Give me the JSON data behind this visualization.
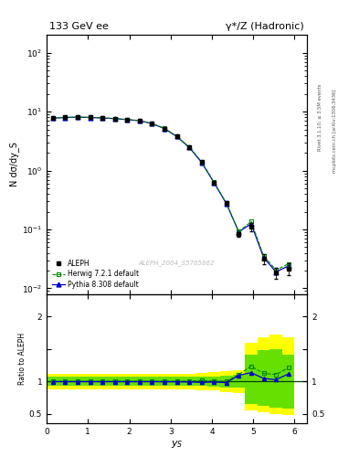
{
  "title_left": "133 GeV ee",
  "title_right": "γ*/Z (Hadronic)",
  "ylabel_main": "N dσ/dy_S",
  "ylabel_ratio": "Ratio to ALEPH",
  "xlabel": "y_S",
  "right_label": "Rivet 3.1.10, ≥ 3.5M events",
  "right_label2": "mcplots.cern.ch [arXiv:1306.3436]",
  "watermark": "ALEPH_2004_S5765862",
  "aleph_x": [
    0.15,
    0.45,
    0.75,
    1.05,
    1.35,
    1.65,
    1.95,
    2.25,
    2.55,
    2.85,
    3.15,
    3.45,
    3.75,
    4.05,
    4.35,
    4.65,
    4.95,
    5.25,
    5.55,
    5.85
  ],
  "aleph_y": [
    7.8,
    8.0,
    8.1,
    8.0,
    7.85,
    7.65,
    7.35,
    7.05,
    6.3,
    5.2,
    3.8,
    2.5,
    1.4,
    0.63,
    0.28,
    0.083,
    0.11,
    0.032,
    0.0185,
    0.0215
  ],
  "aleph_yerr": [
    0.25,
    0.25,
    0.25,
    0.25,
    0.25,
    0.25,
    0.25,
    0.25,
    0.22,
    0.18,
    0.13,
    0.09,
    0.06,
    0.035,
    0.018,
    0.008,
    0.018,
    0.006,
    0.004,
    0.005
  ],
  "herwig_x": [
    0.15,
    0.45,
    0.75,
    1.05,
    1.35,
    1.65,
    1.95,
    2.25,
    2.55,
    2.85,
    3.15,
    3.45,
    3.75,
    4.05,
    4.35,
    4.65,
    4.95,
    5.25,
    5.55,
    5.85
  ],
  "herwig_y": [
    7.82,
    8.02,
    8.12,
    8.02,
    7.87,
    7.67,
    7.37,
    7.07,
    6.32,
    5.22,
    3.82,
    2.52,
    1.42,
    0.635,
    0.28,
    0.092,
    0.136,
    0.036,
    0.0205,
    0.026
  ],
  "pythia_x": [
    0.15,
    0.45,
    0.75,
    1.05,
    1.35,
    1.65,
    1.95,
    2.25,
    2.55,
    2.85,
    3.15,
    3.45,
    3.75,
    4.05,
    4.35,
    4.65,
    4.95,
    5.25,
    5.55,
    5.85
  ],
  "pythia_y": [
    7.78,
    7.98,
    8.08,
    7.98,
    7.83,
    7.63,
    7.33,
    7.03,
    6.28,
    5.18,
    3.78,
    2.48,
    1.38,
    0.625,
    0.275,
    0.091,
    0.125,
    0.0335,
    0.019,
    0.024
  ],
  "herwig_ratio": [
    1.003,
    1.003,
    1.002,
    1.002,
    1.003,
    1.003,
    1.003,
    1.003,
    1.003,
    1.004,
    1.005,
    1.008,
    1.014,
    1.008,
    1.0,
    1.108,
    1.236,
    1.125,
    1.108,
    1.21
  ],
  "pythia_ratio": [
    0.997,
    0.997,
    0.997,
    0.997,
    0.997,
    0.997,
    0.997,
    0.997,
    0.997,
    0.996,
    0.995,
    0.992,
    0.986,
    0.992,
    0.982,
    1.096,
    1.136,
    1.047,
    1.027,
    1.116
  ],
  "yellow_band_x": [
    0.0,
    0.3,
    0.6,
    0.9,
    1.2,
    1.5,
    1.8,
    2.1,
    2.4,
    2.7,
    3.0,
    3.3,
    3.6,
    3.9,
    4.2,
    4.5,
    4.8,
    5.1,
    5.4,
    5.7,
    6.0
  ],
  "yellow_band_lo": [
    0.88,
    0.88,
    0.88,
    0.88,
    0.88,
    0.88,
    0.88,
    0.88,
    0.88,
    0.88,
    0.88,
    0.88,
    0.87,
    0.86,
    0.84,
    0.82,
    0.55,
    0.52,
    0.5,
    0.48,
    0.4
  ],
  "yellow_band_hi": [
    1.12,
    1.12,
    1.12,
    1.12,
    1.12,
    1.12,
    1.12,
    1.12,
    1.12,
    1.12,
    1.12,
    1.12,
    1.13,
    1.14,
    1.16,
    1.18,
    1.6,
    1.68,
    1.72,
    1.68,
    1.65
  ],
  "green_band_lo": [
    0.93,
    0.93,
    0.93,
    0.93,
    0.93,
    0.93,
    0.93,
    0.93,
    0.93,
    0.93,
    0.93,
    0.93,
    0.93,
    0.92,
    0.91,
    0.9,
    0.65,
    0.62,
    0.6,
    0.58,
    0.58
  ],
  "green_band_hi": [
    1.07,
    1.07,
    1.07,
    1.07,
    1.07,
    1.07,
    1.07,
    1.07,
    1.07,
    1.07,
    1.07,
    1.07,
    1.07,
    1.08,
    1.09,
    1.1,
    1.42,
    1.48,
    1.5,
    1.42,
    1.38
  ],
  "xlim": [
    0,
    6.3
  ],
  "ylim_main_log": [
    0.008,
    200
  ],
  "ylim_ratio": [
    0.35,
    2.35
  ],
  "color_aleph": "#000000",
  "color_herwig": "#008800",
  "color_pythia": "#0000cc",
  "color_yellow": "#ffff00",
  "color_green": "#00cc00",
  "bg_color": "#ffffff"
}
